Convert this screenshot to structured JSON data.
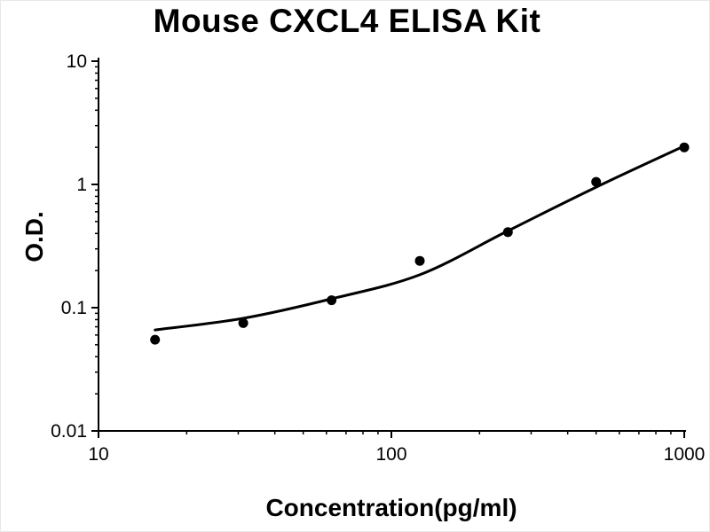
{
  "title": "Mouse CXCL4 ELISA Kit",
  "chart_data": {
    "type": "scatter",
    "subtype": "scatter-with-fitted-curve",
    "title": "Mouse CXCL4 ELISA Kit",
    "xlabel": "Concentration(pg/ml)",
    "ylabel": "O.D.",
    "x_scale": "log",
    "y_scale": "log",
    "xlim": [
      10,
      1000
    ],
    "ylim": [
      0.01,
      10
    ],
    "x_ticks": [
      10,
      100,
      1000
    ],
    "x_tick_labels": [
      "10",
      "100",
      "1000"
    ],
    "y_ticks": [
      0.01,
      0.1,
      1,
      10
    ],
    "y_tick_labels": [
      "0.01",
      "0.1",
      "1",
      "10"
    ],
    "grid": false,
    "legend": "none",
    "point_color": "#000000",
    "line_color": "#000000",
    "series": [
      {
        "name": "standard-curve-points",
        "x": [
          15.6,
          31.2,
          62.5,
          125,
          250,
          500,
          1000
        ],
        "y": [
          0.055,
          0.075,
          0.115,
          0.24,
          0.41,
          1.05,
          2.0
        ]
      }
    ],
    "fit_curve": {
      "name": "fitted-standard-curve",
      "x": [
        15.6,
        31.2,
        62.5,
        125,
        250,
        500,
        1000
      ],
      "y": [
        0.066,
        0.082,
        0.118,
        0.185,
        0.42,
        0.95,
        2.05
      ]
    }
  }
}
